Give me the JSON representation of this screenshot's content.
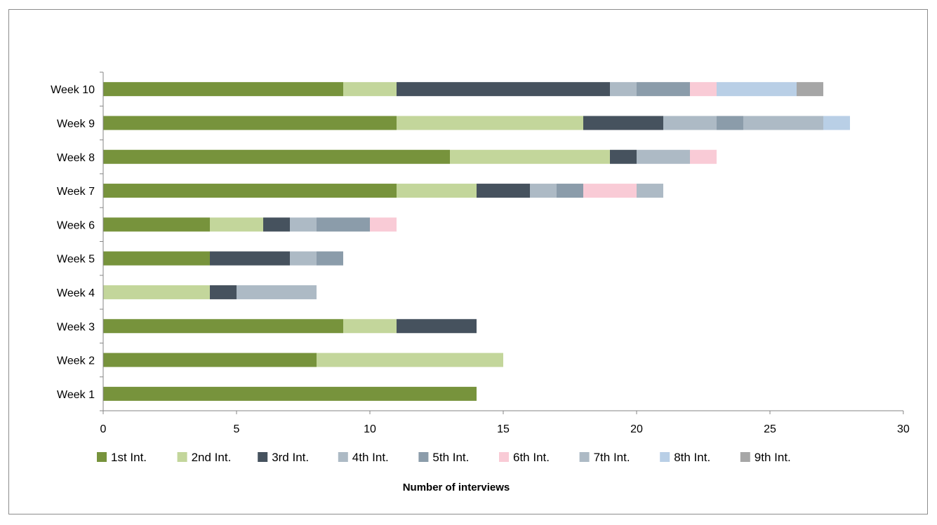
{
  "chart_data": {
    "type": "bar",
    "orientation": "horizontal",
    "stacked": true,
    "categories": [
      "Week 1",
      "Week 2",
      "Week 3",
      "Week 4",
      "Week 5",
      "Week 6",
      "Week 7",
      "Week 8",
      "Week 9",
      "Week 10"
    ],
    "series": [
      {
        "name": "1st Int.",
        "color": "#77933c",
        "values": [
          14,
          8,
          9,
          0,
          4,
          4,
          11,
          13,
          11,
          9
        ]
      },
      {
        "name": "2nd Int.",
        "color": "#c3d69b",
        "values": [
          0,
          7,
          2,
          4,
          0,
          2,
          3,
          6,
          7,
          2
        ]
      },
      {
        "name": "3rd Int.",
        "color": "#46525e",
        "values": [
          0,
          0,
          3,
          1,
          3,
          1,
          2,
          1,
          3,
          8
        ]
      },
      {
        "name": "4th Int.",
        "color": "#adbac5",
        "values": [
          0,
          0,
          0,
          3,
          1,
          1,
          1,
          2,
          2,
          1
        ]
      },
      {
        "name": "5th Int.",
        "color": "#8b9caa",
        "values": [
          0,
          0,
          0,
          0,
          1,
          2,
          1,
          0,
          1,
          2
        ]
      },
      {
        "name": "6th Int.",
        "color": "#f9cbd6",
        "values": [
          0,
          0,
          0,
          0,
          0,
          1,
          2,
          1,
          0,
          1
        ]
      },
      {
        "name": "7th Int.",
        "color": "#adbac5",
        "values": [
          0,
          0,
          0,
          0,
          0,
          0,
          1,
          0,
          3,
          0
        ]
      },
      {
        "name": "8th Int.",
        "color": "#b9cfe6",
        "values": [
          0,
          0,
          0,
          0,
          0,
          0,
          0,
          0,
          1,
          3
        ]
      },
      {
        "name": "9th Int.",
        "color": "#a6a6a6",
        "values": [
          0,
          0,
          0,
          0,
          0,
          0,
          0,
          0,
          0,
          1
        ]
      }
    ],
    "xlim": [
      0,
      30
    ],
    "xticks": [
      0,
      5,
      10,
      15,
      20,
      25,
      30
    ],
    "xlabel": "Number of interviews",
    "ylabel": "",
    "title": "",
    "grid": false,
    "legend_position": "bottom"
  }
}
